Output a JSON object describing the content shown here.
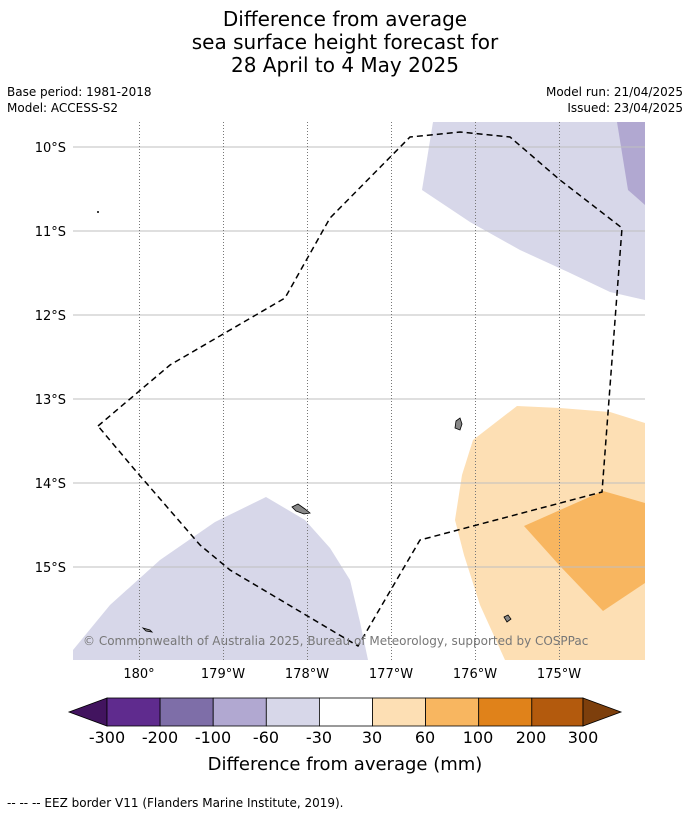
{
  "title": {
    "line1": "Difference from average",
    "line2": "sea surface height forecast for",
    "line3": "28 April to 4 May 2025"
  },
  "meta": {
    "base_period": "Base period: 1981-2018",
    "model": "Model: ACCESS-S2",
    "model_run": "Model run: 21/04/2025",
    "issued": "Issued: 23/04/2025"
  },
  "map": {
    "lat_labels": [
      "10°S",
      "11°S",
      "12°S",
      "13°S",
      "14°S",
      "15°S"
    ],
    "lon_labels": [
      "180°",
      "179°W",
      "178°W",
      "177°W",
      "176°W",
      "175°W"
    ],
    "copyright": "© Commonwealth of Australia 2025, Bureau of Meteorology, supported by COSPPac",
    "colors": {
      "neg_30_60": "#d7d7e9",
      "neg_60_100": "#b1a8d1",
      "pos_30_60": "#fddfb4",
      "pos_60_100": "#f8b660",
      "eez_border": "#000000",
      "land": "#888888"
    }
  },
  "colorbar": {
    "ticks": [
      "-300",
      "-200",
      "-100",
      "-60",
      "-30",
      "30",
      "60",
      "100",
      "200",
      "300"
    ],
    "colors": [
      "#42145f",
      "#5f2b8e",
      "#7e6ea8",
      "#b1a8d1",
      "#d7d7e9",
      "#ffffff",
      "#fddfb4",
      "#f8b660",
      "#e0821a",
      "#b35a0d",
      "#7d3f0c"
    ],
    "label": "Difference from average (mm)"
  },
  "footnote": "-- -- -- EEZ border V11 (Flanders Marine Institute, 2019)."
}
